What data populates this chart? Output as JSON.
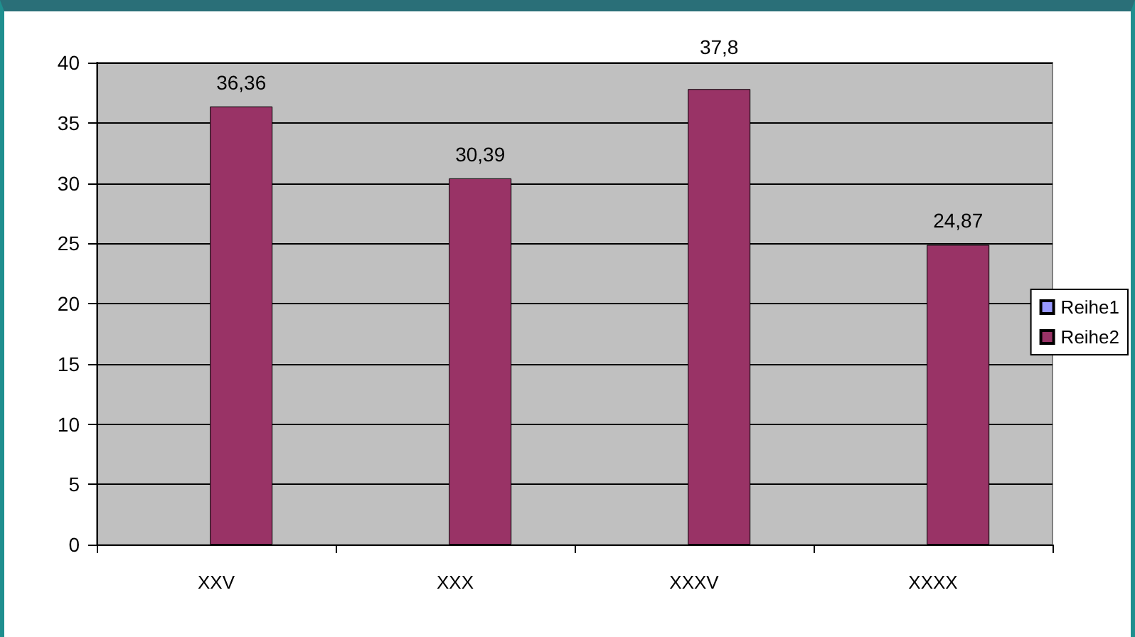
{
  "chart_data": {
    "type": "bar",
    "categories": [
      "XXV",
      "XXX",
      "XXXV",
      "XXXX"
    ],
    "series": [
      {
        "name": "Reihe1",
        "color": "#9999ff",
        "values": [
          null,
          null,
          null,
          null
        ]
      },
      {
        "name": "Reihe2",
        "color": "#993366",
        "values": [
          36.36,
          30.39,
          37.8,
          24.87
        ],
        "value_labels": [
          "36,36",
          "30,39",
          "37,8",
          "24,87"
        ]
      }
    ],
    "ylim": [
      0,
      40
    ],
    "yticks": [
      0,
      5,
      10,
      15,
      20,
      25,
      30,
      35,
      40
    ],
    "grid": "y",
    "legend": "right"
  }
}
